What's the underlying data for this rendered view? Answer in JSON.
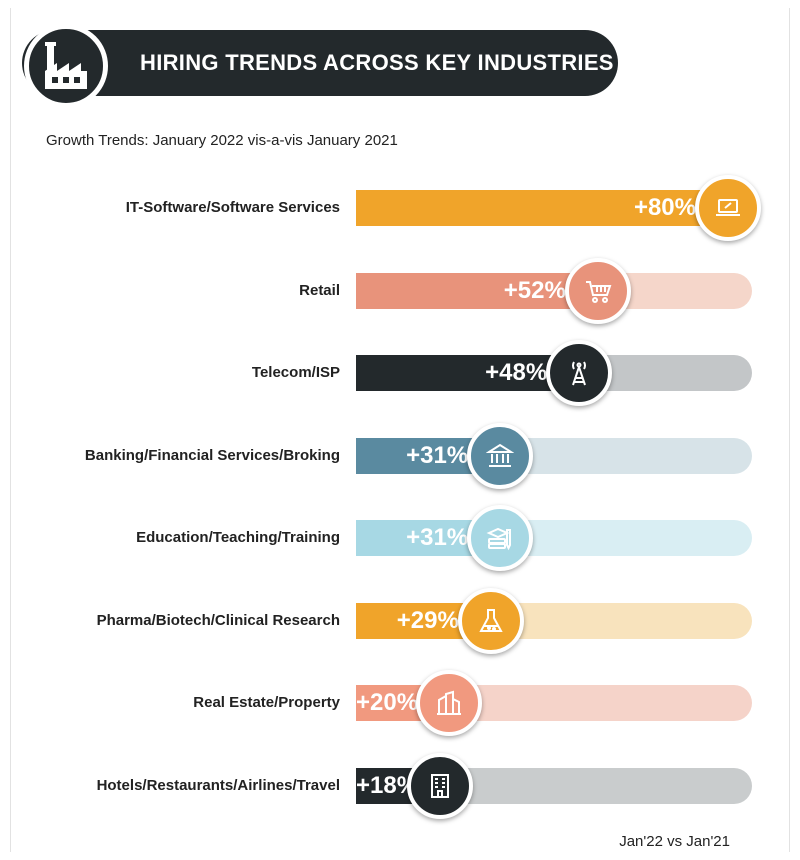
{
  "header": {
    "title": "HIRING TRENDS ACROSS KEY INDUSTRIES",
    "icon": "factory-icon"
  },
  "subtitle": "Growth Trends: January 2022 vis-a-vis January 2021",
  "footnote": "Jan'22 vs Jan'21",
  "chart_data": {
    "type": "bar",
    "orientation": "horizontal",
    "title": "HIRING TRENDS ACROSS KEY INDUSTRIES",
    "subtitle": "Growth Trends: January 2022 vis-a-vis January 2021",
    "xlim": [
      0,
      100
    ],
    "grid": false,
    "legend": "none",
    "categories": [
      "IT-Software/Software Services",
      "Retail",
      "Telecom/ISP",
      "Banking/Financial Services/Broking",
      "Education/Teaching/Training",
      "Pharma/Biotech/Clinical Research",
      "Real Estate/Property",
      "Hotels/Restaurants/Airlines/Travel"
    ],
    "values": [
      80,
      52,
      48,
      31,
      31,
      29,
      20,
      18
    ],
    "value_labels": [
      "+80%",
      "+52%",
      "+48%",
      "+31%",
      "+31%",
      "+29%",
      "+20%",
      "+18%"
    ],
    "icons": [
      "laptop-icon",
      "shopping-cart-icon",
      "telecom-tower-icon",
      "bank-icon",
      "books-icon",
      "flask-icon",
      "buildings-icon",
      "hotel-icon"
    ],
    "colors": [
      "#f0a42a",
      "#e8937b",
      "#23292c",
      "#5a8aa0",
      "#a7d8e4",
      "#f0a42a",
      "#f1997f",
      "#23292c"
    ],
    "track_colors": [
      "#f7dcae",
      "#f5d6ca",
      "#c3c6c8",
      "#d7e3e8",
      "#d9eef3",
      "#f8e3bd",
      "#f5d3c9",
      "#c9cccd"
    ]
  }
}
